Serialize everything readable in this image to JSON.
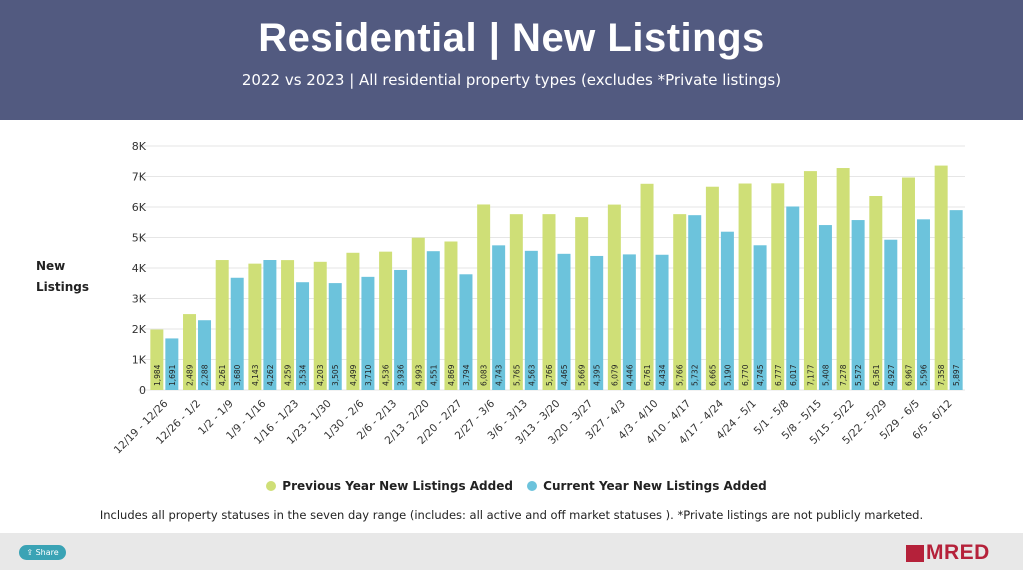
{
  "header": {
    "title": "Residential | New Listings",
    "subtitle": "2022 vs 2023 | All residential property types (excludes *Private listings)"
  },
  "chart_data": {
    "type": "bar",
    "ylabel": "New Listings",
    "ylim": [
      0,
      8000
    ],
    "yticks": [
      "0",
      "1K",
      "2K",
      "3K",
      "4K",
      "5K",
      "6K",
      "7K",
      "8K"
    ],
    "grid": true,
    "legend_position": "bottom",
    "categories": [
      "12/19 - 12/26",
      "12/26 - 1/2",
      "1/2 - 1/9",
      "1/9 - 1/16",
      "1/16 - 1/23",
      "1/23 - 1/30",
      "1/30 - 2/6",
      "2/6 - 2/13",
      "2/13 - 2/20",
      "2/20 - 2/27",
      "2/27 - 3/6",
      "3/6 - 3/13",
      "3/13 - 3/20",
      "3/20 - 3/27",
      "3/27 - 4/3",
      "4/3 - 4/10",
      "4/10 - 4/17",
      "4/17 - 4/24",
      "4/24 - 5/1",
      "5/1 - 5/8",
      "5/8 - 5/15",
      "5/15 - 5/22",
      "5/22 - 5/29",
      "5/29 - 6/5",
      "6/5 - 6/12"
    ],
    "series": [
      {
        "name": "Previous Year New Listings Added",
        "color": "#cfdf77",
        "values": [
          1984,
          2489,
          4261,
          4143,
          4259,
          4203,
          4499,
          4536,
          4993,
          4869,
          6083,
          5765,
          5766,
          5669,
          6079,
          6761,
          5766,
          6665,
          6770,
          6777,
          7177,
          7278,
          6361,
          6967,
          7358
        ]
      },
      {
        "name": "Current Year New Listings Added",
        "color": "#6cc3dc",
        "values": [
          1691,
          2288,
          3680,
          4262,
          3534,
          3505,
          3710,
          3936,
          4551,
          3794,
          4743,
          4563,
          4465,
          4395,
          4446,
          4434,
          5732,
          5190,
          4745,
          6017,
          5408,
          5572,
          4927,
          5596,
          5897
        ]
      }
    ]
  },
  "note": "Includes all property statuses in the seven day range (includes: all active and off market statuses ). *Private listings are not publicly marketed.",
  "footer": {
    "share_label": "Share",
    "logo": "MRED"
  }
}
